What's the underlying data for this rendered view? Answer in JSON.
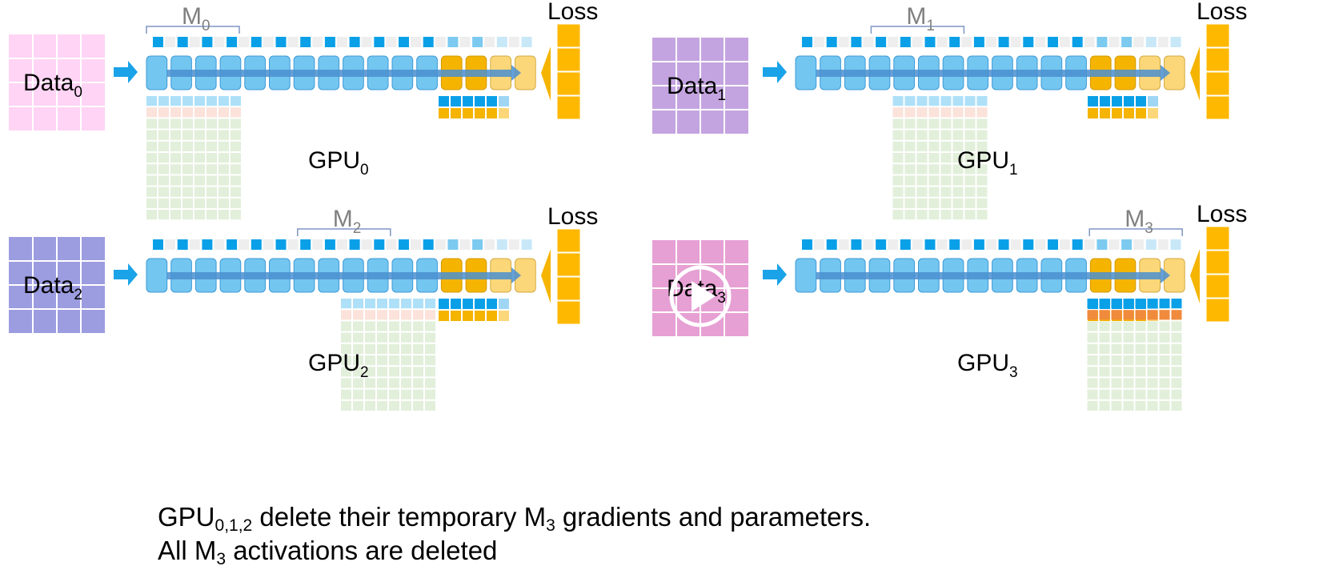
{
  "panels": [
    {
      "gpu_label": "GPU",
      "gpu_sub": "0",
      "data_label": "Data",
      "data_sub": "0",
      "model_label": "M",
      "model_sub": "0",
      "loss_label": "Loss",
      "data_color": "#ffd4f4",
      "bracket_pos": 0,
      "video_overlay": false
    },
    {
      "gpu_label": "GPU",
      "gpu_sub": "1",
      "data_label": "Data",
      "data_sub": "1",
      "model_label": "M",
      "model_sub": "1",
      "loss_label": "Loss",
      "data_color": "#c4a4e0",
      "bracket_pos": 1,
      "video_overlay": false
    },
    {
      "gpu_label": "GPU",
      "gpu_sub": "2",
      "data_label": "Data",
      "data_sub": "2",
      "model_label": "M",
      "model_sub": "2",
      "loss_label": "Loss",
      "data_color": "#9c9ce0",
      "bracket_pos": 2,
      "video_overlay": false
    },
    {
      "gpu_label": "GPU",
      "gpu_sub": "3",
      "data_label": "Data",
      "data_sub": "3",
      "model_label": "M",
      "model_sub": "3",
      "loss_label": "Loss",
      "data_color": "#e6a0d4",
      "bracket_pos": 3,
      "video_overlay": true
    }
  ],
  "caption": {
    "line1_a": "GPU",
    "line1_sub1": "0,1,2",
    "line1_b": " delete their temporary M",
    "line1_sub2": "3",
    "line1_c": " gradients and parameters.",
    "line2_a": "All M",
    "line2_sub": "3",
    "line2_b": " activations are deleted"
  },
  "colors": {
    "layer_blue": "#73c6f0",
    "layer_orange": "#f5b400",
    "layer_light_orange": "#fbd77a",
    "flow_arrow": "#4a8fd0",
    "param_square": "#0aa0e8",
    "loss_column": "#ffb800",
    "grid_green": "#e2efda",
    "grid_pink": "#fbe2da",
    "grid_lightblue": "#aee0f8",
    "bracket": "#7f96c4",
    "bracket_text": "#808080",
    "grad_orange": "#f08a3c"
  },
  "icons": {
    "play": "play-icon",
    "arrow": "arrow-right-icon"
  }
}
